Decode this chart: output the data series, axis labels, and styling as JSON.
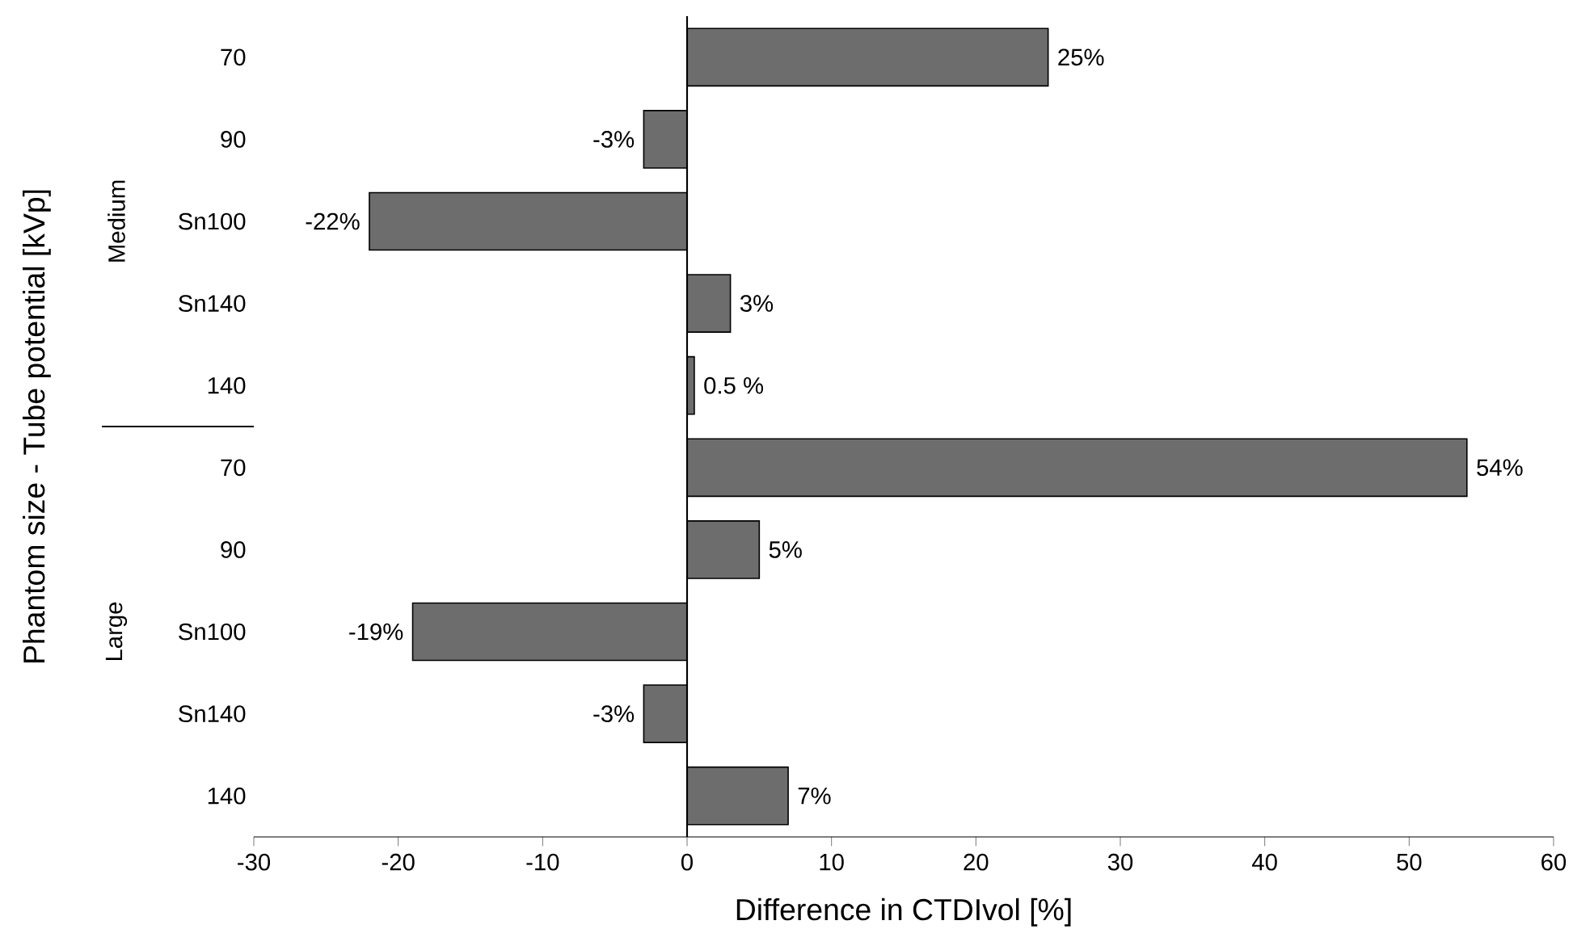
{
  "chart_data": {
    "type": "bar",
    "orientation": "horizontal",
    "xlabel": "Difference in CTDIvol [%]",
    "ylabel": "Phantom size - Tube potential [kVp]",
    "categories": [
      "70",
      "90",
      "Sn100",
      "Sn140",
      "140",
      "70",
      "90",
      "Sn100",
      "Sn140",
      "140"
    ],
    "values": [
      25,
      -3,
      -22,
      3,
      0.5,
      54,
      5,
      -19,
      -3,
      7
    ],
    "value_labels": [
      "25%",
      "-3%",
      "-22%",
      "3%",
      "0.5 %",
      "54%",
      "5%",
      "-19%",
      "-3%",
      "7%"
    ],
    "color": "#6d6d6d",
    "xlim": [
      -30,
      60
    ],
    "xticks": [
      -30,
      -20,
      -10,
      0,
      10,
      20,
      30,
      40,
      50,
      60
    ],
    "annotations": [
      "Medium",
      "Large"
    ]
  }
}
